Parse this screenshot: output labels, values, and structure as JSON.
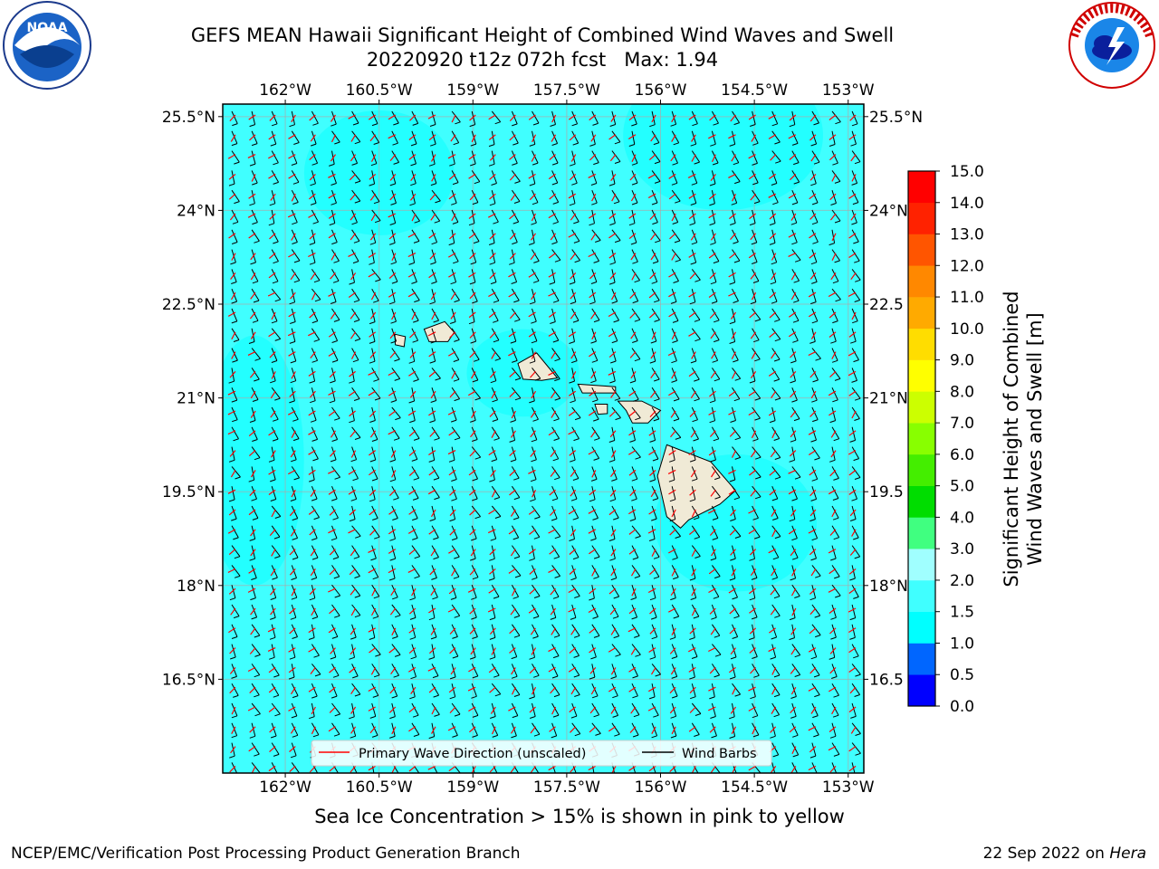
{
  "title": {
    "line1": "GEFS MEAN Hawaii Significant Height of Combined Wind Waves and Swell",
    "line2": "20220920 t12z 072h fcst   Max: 1.94"
  },
  "logos": {
    "left": "NOAA",
    "left_ring_text": "NATIONAL OCEANIC AND ATMOSPHERIC ADMINISTRATION · U.S. DEPARTMENT OF COMMERCE",
    "right_ring_text": "NATIONAL WEATHER SERVICE"
  },
  "axes": {
    "lon_labels": [
      "162°W",
      "160.5°W",
      "159°W",
      "157.5°W",
      "156°W",
      "154.5°W",
      "153°W"
    ],
    "lon_values": [
      -162,
      -160.5,
      -159,
      -157.5,
      -156,
      -154.5,
      -153
    ],
    "lat_labels": [
      "25.5°N",
      "24°N",
      "22.5°N",
      "21°N",
      "19.5°N",
      "18°N",
      "16.5°N"
    ],
    "lat_values": [
      25.5,
      24,
      22.5,
      21,
      19.5,
      18,
      16.5
    ],
    "right_lat_labels": [
      "25.5°N",
      "24°N",
      "22.5",
      "21°N",
      "19.5",
      "18°N",
      "16.5"
    ],
    "lon_range": [
      -163.0,
      -152.75
    ],
    "lat_range": [
      15.0,
      25.7
    ]
  },
  "colorbar": {
    "title_line1": "Significant Height of Combined",
    "title_line2": "Wind Waves and Swell [m]",
    "levels": [
      "0.0",
      "0.5",
      "1.0",
      "1.5",
      "2.0",
      "3.0",
      "4.0",
      "5.0",
      "6.0",
      "7.0",
      "8.0",
      "9.0",
      "10.0",
      "11.0",
      "12.0",
      "13.0",
      "14.0",
      "15.0"
    ],
    "colors": [
      "#0000ff",
      "#0066ff",
      "#00ffff",
      "#40ffff",
      "#a0ffff",
      "#40ff80",
      "#00dd00",
      "#44ee00",
      "#88ff00",
      "#ccff00",
      "#ffff00",
      "#ffdd00",
      "#ffaa00",
      "#ff8800",
      "#ff5500",
      "#ff2200",
      "#ff0000"
    ]
  },
  "legend": {
    "wave_direction": "Primary Wave Direction (unscaled)",
    "wind_barbs": "Wind Barbs",
    "wave_color": "#ff0000",
    "barb_color": "#000000"
  },
  "colors": {
    "sea_main": "#40ffff",
    "sea_light": "#00ffff",
    "land": "#f0ead6"
  },
  "caption": "Sea Ice Concentration > 15% is shown in pink to yellow",
  "footer": {
    "left": "NCEP/EMC/Verification Post Processing Product Generation Branch",
    "right_prefix": "22 Sep 2022 on ",
    "right_machine": "Hera"
  }
}
